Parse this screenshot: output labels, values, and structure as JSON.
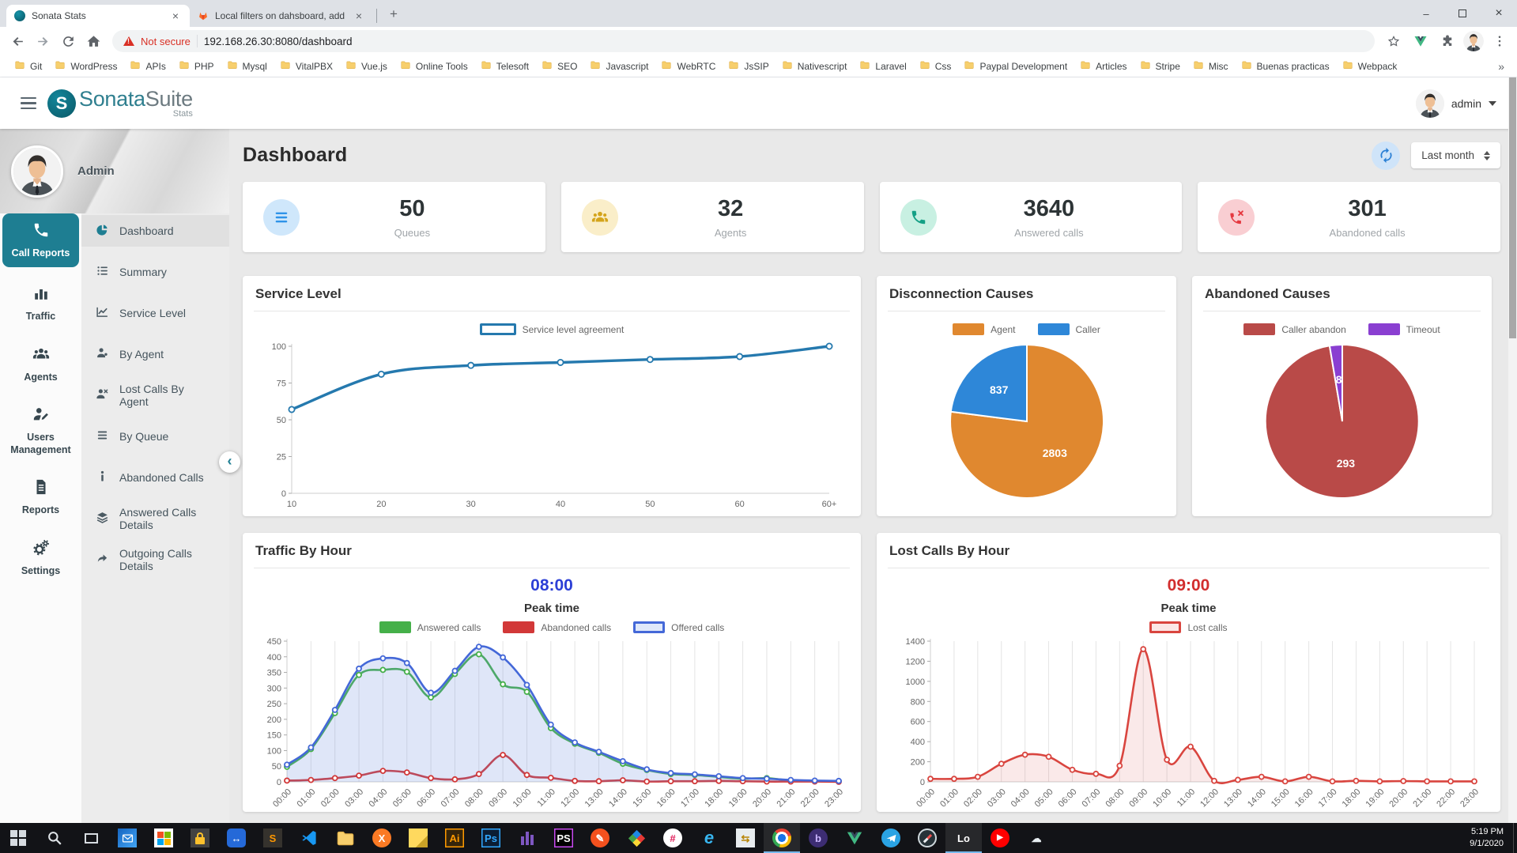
{
  "browser": {
    "tabs": [
      {
        "title": "Sonata Stats",
        "favicon": "sonata-favicon",
        "active": true
      },
      {
        "title": "Local filters on dahsboard, add a",
        "favicon": "gitlab-icon",
        "active": false
      }
    ],
    "new_tab": "+",
    "window_controls": {
      "minimize": "–",
      "close": "×"
    },
    "address": {
      "warning": "Not secure",
      "url": "192.168.26.30:8080/dashboard"
    },
    "bookmarks": [
      "Git",
      "WordPress",
      "APIs",
      "PHP",
      "Mysql",
      "VitalPBX",
      "Vue.js",
      "Online Tools",
      "Telesoft",
      "SEO",
      "Javascript",
      "WebRTC",
      "JsSIP",
      "Nativescript",
      "Laravel",
      "Css",
      "Paypal Development",
      "Articles",
      "Stripe",
      "Misc",
      "Buenas practicas",
      "Webpack"
    ],
    "bookmarks_overflow": "»"
  },
  "header": {
    "brand_bold": "Sonata",
    "brand_light": "Suite",
    "brand_sub": "Stats",
    "user": "admin"
  },
  "sidebar": {
    "profile_name": "Admin",
    "collapse_glyph": "‹",
    "primary": [
      {
        "label": "Call Reports",
        "icon": "phone-icon",
        "active": true
      },
      {
        "label": "Traffic",
        "icon": "bar-chart-icon",
        "active": false
      },
      {
        "label": "Agents",
        "icon": "people-icon",
        "active": false
      },
      {
        "label": "Users Management",
        "icon": "user-edit-icon",
        "active": false
      },
      {
        "label": "Reports",
        "icon": "report-icon",
        "active": false
      },
      {
        "label": "Settings",
        "icon": "gears-icon",
        "active": false
      }
    ],
    "secondary": [
      {
        "label": "Dashboard",
        "icon": "pie-icon",
        "active": true
      },
      {
        "label": "Summary",
        "icon": "list-icon",
        "active": false
      },
      {
        "label": "Service Level",
        "icon": "line-chart-icon",
        "active": false
      },
      {
        "label": "By Agent",
        "icon": "agent-icon",
        "active": false
      },
      {
        "label": "Lost Calls By Agent",
        "icon": "agent-x-icon",
        "active": false
      },
      {
        "label": "By Queue",
        "icon": "queue-icon",
        "active": false
      },
      {
        "label": "Abandoned Calls",
        "icon": "info-icon",
        "active": false
      },
      {
        "label": "Answered Calls Details",
        "icon": "layers-icon",
        "active": false
      },
      {
        "label": "Outgoing Calls Details",
        "icon": "arrow-out-icon",
        "active": false
      }
    ]
  },
  "page": {
    "title": "Dashboard",
    "range_value": "Last month",
    "stats": [
      {
        "value": "50",
        "label": "Queues",
        "icon": "queue-list-icon",
        "accent": "#2e93e8",
        "bg": "#cfe7fb"
      },
      {
        "value": "32",
        "label": "Agents",
        "icon": "people-icon",
        "accent": "#d4a41c",
        "bg": "#faeec9"
      },
      {
        "value": "3640",
        "label": "Answered calls",
        "icon": "phone-icon",
        "accent": "#14a085",
        "bg": "#c8f0e2"
      },
      {
        "value": "301",
        "label": "Abandoned calls",
        "icon": "phone-x-icon",
        "accent": "#e53940",
        "bg": "#f9ced2"
      }
    ]
  },
  "chart_data": [
    {
      "id": "service-level",
      "type": "line",
      "title": "Service Level",
      "categories": [
        "10",
        "20",
        "30",
        "40",
        "50",
        "60",
        "60+"
      ],
      "series": [
        {
          "name": "Service level agreement",
          "color": "#2579ae",
          "swatch": "outline",
          "swatch_bg": "#ffffff",
          "values": [
            57,
            81,
            87,
            89,
            91,
            93,
            100
          ]
        }
      ],
      "xlabel": "",
      "ylabel": "",
      "ylim": [
        0,
        100
      ],
      "yticks": [
        0,
        25,
        50,
        75,
        100
      ],
      "grid": false,
      "legend_position": "top-center"
    },
    {
      "id": "disconnection-causes",
      "type": "pie",
      "title": "Disconnection Causes",
      "labels": [
        "Agent",
        "Caller"
      ],
      "values": [
        2803,
        837
      ],
      "colors": [
        "#e0882f",
        "#2e87d8"
      ],
      "legend_position": "top-center"
    },
    {
      "id": "abandoned-causes",
      "type": "pie",
      "title": "Abandoned Causes",
      "labels": [
        "Caller abandon",
        "Timeout"
      ],
      "values": [
        293,
        8
      ],
      "colors": [
        "#b94a48",
        "#8a3fd1"
      ],
      "legend_position": "top-center"
    },
    {
      "id": "traffic-by-hour",
      "type": "line",
      "title": "Traffic By Hour",
      "peak_value": "08:00",
      "peak_label": "Peak time",
      "peak_color": "#2c3fd6",
      "categories": [
        "00:00",
        "01:00",
        "02:00",
        "03:00",
        "04:00",
        "05:00",
        "06:00",
        "07:00",
        "08:00",
        "09:00",
        "10:00",
        "11:00",
        "12:00",
        "13:00",
        "14:00",
        "15:00",
        "16:00",
        "17:00",
        "18:00",
        "19:00",
        "20:00",
        "21:00",
        "22:00",
        "23:00"
      ],
      "series": [
        {
          "name": "Answered calls",
          "color": "#45b049",
          "swatch": "fill",
          "values": [
            48,
            105,
            220,
            342,
            358,
            352,
            270,
            345,
            408,
            312,
            288,
            172,
            122,
            93,
            58,
            38,
            25,
            22,
            16,
            10,
            12,
            4,
            2,
            2
          ]
        },
        {
          "name": "Abandoned calls",
          "color": "#d23838",
          "swatch": "fill",
          "values": [
            4,
            6,
            12,
            20,
            35,
            30,
            12,
            8,
            25,
            86,
            22,
            13,
            3,
            2,
            5,
            1,
            2,
            2,
            3,
            2,
            1,
            1,
            1,
            0
          ]
        },
        {
          "name": "Offered calls",
          "color": "#4468d8",
          "swatch": "outline",
          "swatch_bg": "#dfe8fa",
          "fill": "rgba(108,140,222,0.22)",
          "values": [
            55,
            110,
            230,
            362,
            395,
            380,
            285,
            355,
            432,
            398,
            310,
            183,
            126,
            96,
            66,
            40,
            28,
            24,
            18,
            12,
            10,
            6,
            4,
            3
          ]
        }
      ],
      "ylim": [
        0,
        450
      ],
      "yticks": [
        0,
        50,
        100,
        150,
        200,
        250,
        300,
        350,
        400,
        450
      ],
      "grid": true,
      "legend_position": "top-center"
    },
    {
      "id": "lost-calls-by-hour",
      "type": "line",
      "title": "Lost Calls By Hour",
      "peak_value": "09:00",
      "peak_label": "Peak time",
      "peak_color": "#d22e2e",
      "categories": [
        "00:00",
        "01:00",
        "02:00",
        "03:00",
        "04:00",
        "05:00",
        "06:00",
        "07:00",
        "08:00",
        "09:00",
        "10:00",
        "11:00",
        "12:00",
        "13:00",
        "14:00",
        "15:00",
        "16:00",
        "17:00",
        "18:00",
        "19:00",
        "20:00",
        "21:00",
        "22:00",
        "23:00"
      ],
      "series": [
        {
          "name": "Lost calls",
          "color": "#d9453f",
          "swatch": "outline",
          "swatch_bg": "#fbe7e6",
          "fill": "rgba(217,74,70,0.12)",
          "values": [
            30,
            30,
            50,
            180,
            270,
            250,
            120,
            80,
            160,
            1320,
            220,
            350,
            10,
            20,
            50,
            5,
            50,
            5,
            10,
            5,
            8,
            5,
            5,
            5
          ]
        }
      ],
      "ylim": [
        0,
        1400
      ],
      "yticks": [
        0,
        200,
        400,
        600,
        800,
        1000,
        1200,
        1400
      ],
      "grid": true,
      "legend_position": "top-center"
    }
  ],
  "taskbar": {
    "time": "5:19 PM",
    "date": "9/1/2020",
    "icons": [
      {
        "name": "start-button",
        "kind": "start"
      },
      {
        "name": "search-button",
        "kind": "search"
      },
      {
        "name": "task-view-button",
        "kind": "taskview"
      },
      {
        "name": "mail-app-icon",
        "kind": "mail"
      },
      {
        "name": "microsoft-store-icon",
        "kind": "store"
      },
      {
        "name": "lock-app-icon",
        "kind": "lock"
      },
      {
        "name": "teamviewer-icon",
        "kind": "teamviewer"
      },
      {
        "name": "sublime-text-icon",
        "kind": "text",
        "bg": "#35322d",
        "fg": "#ff9800",
        "label": "S"
      },
      {
        "name": "vscode-icon",
        "kind": "vscode"
      },
      {
        "name": "file-explorer-icon",
        "kind": "folder"
      },
      {
        "name": "xampp-icon",
        "kind": "text",
        "bg": "#fb7a24",
        "fg": "#ffffff",
        "label": "X",
        "round": true
      },
      {
        "name": "sticky-notes-icon",
        "kind": "notes"
      },
      {
        "name": "illustrator-icon",
        "kind": "text",
        "bg": "#35250b",
        "fg": "#ff9a00",
        "label": "Ai",
        "border": "#ff9a00"
      },
      {
        "name": "photoshop-icon",
        "kind": "text",
        "bg": "#0b1d33",
        "fg": "#31a8ff",
        "label": "Ps",
        "border": "#31a8ff"
      },
      {
        "name": "purple-towers-app-icon",
        "kind": "towers"
      },
      {
        "name": "phpstorm-icon",
        "kind": "text",
        "bg": "#000000",
        "fg": "#ffffff",
        "label": "PS",
        "border": "#c84af0"
      },
      {
        "name": "pencil-app-icon",
        "kind": "text",
        "bg": "#f4511e",
        "fg": "#ffffff",
        "label": "✎",
        "round": true
      },
      {
        "name": "diamond-app-icon",
        "kind": "diamond"
      },
      {
        "name": "slack-icon",
        "kind": "text",
        "bg": "#ffffff",
        "fg": "#e01e5a",
        "label": "#",
        "round": true
      },
      {
        "name": "edge-icon",
        "kind": "text",
        "bg": "",
        "fg": "#38b6f0",
        "label": "e",
        "big": true
      },
      {
        "name": "winscp-icon",
        "kind": "text",
        "bg": "#e8ecef",
        "fg": "#b8860b",
        "label": "⇆"
      },
      {
        "name": "chrome-icon",
        "kind": "chrome",
        "active": true
      },
      {
        "name": "purple-b-app-icon",
        "kind": "text",
        "bg": "#3d2d73",
        "fg": "#cbb6ff",
        "label": "b",
        "round": true
      },
      {
        "name": "vue-app-icon",
        "kind": "vue"
      },
      {
        "name": "telegram-icon",
        "kind": "telegram"
      },
      {
        "name": "compass-app-icon",
        "kind": "compass"
      },
      {
        "name": "lo-app-icon",
        "kind": "text",
        "bg": "",
        "fg": "#ffffff",
        "label": "Lo",
        "active": true
      },
      {
        "name": "youtube-music-icon",
        "kind": "ytmusic"
      },
      {
        "name": "weather-app-icon",
        "kind": "text",
        "bg": "",
        "fg": "#e8eef2",
        "label": "☁"
      }
    ]
  }
}
